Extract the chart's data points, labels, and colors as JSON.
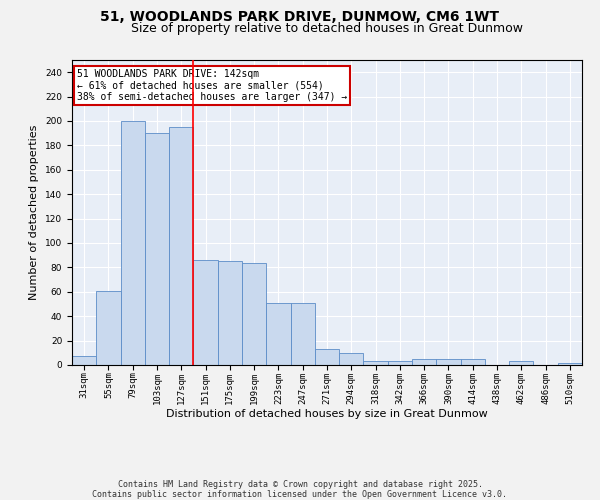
{
  "title": "51, WOODLANDS PARK DRIVE, DUNMOW, CM6 1WT",
  "subtitle": "Size of property relative to detached houses in Great Dunmow",
  "xlabel": "Distribution of detached houses by size in Great Dunmow",
  "ylabel": "Number of detached properties",
  "categories": [
    "31sqm",
    "55sqm",
    "79sqm",
    "103sqm",
    "127sqm",
    "151sqm",
    "175sqm",
    "199sqm",
    "223sqm",
    "247sqm",
    "271sqm",
    "294sqm",
    "318sqm",
    "342sqm",
    "366sqm",
    "390sqm",
    "414sqm",
    "438sqm",
    "462sqm",
    "486sqm",
    "510sqm"
  ],
  "values": [
    7,
    61,
    200,
    190,
    195,
    86,
    85,
    84,
    51,
    51,
    13,
    10,
    3,
    3,
    5,
    5,
    5,
    0,
    3,
    0,
    2
  ],
  "bar_color": "#c9d9ee",
  "bar_edge_color": "#5b8cc8",
  "red_line_index": 4,
  "annotation_text": "51 WOODLANDS PARK DRIVE: 142sqm\n← 61% of detached houses are smaller (554)\n38% of semi-detached houses are larger (347) →",
  "annotation_box_color": "#ffffff",
  "annotation_box_edge": "#cc0000",
  "ylim": [
    0,
    250
  ],
  "yticks": [
    0,
    20,
    40,
    60,
    80,
    100,
    120,
    140,
    160,
    180,
    200,
    220,
    240
  ],
  "bg_color": "#e8eef7",
  "grid_color": "#ffffff",
  "fig_bg_color": "#f2f2f2",
  "footer": "Contains HM Land Registry data © Crown copyright and database right 2025.\nContains public sector information licensed under the Open Government Licence v3.0.",
  "title_fontsize": 10,
  "subtitle_fontsize": 9,
  "xlabel_fontsize": 8,
  "ylabel_fontsize": 8,
  "footer_fontsize": 6,
  "tick_fontsize": 6.5
}
